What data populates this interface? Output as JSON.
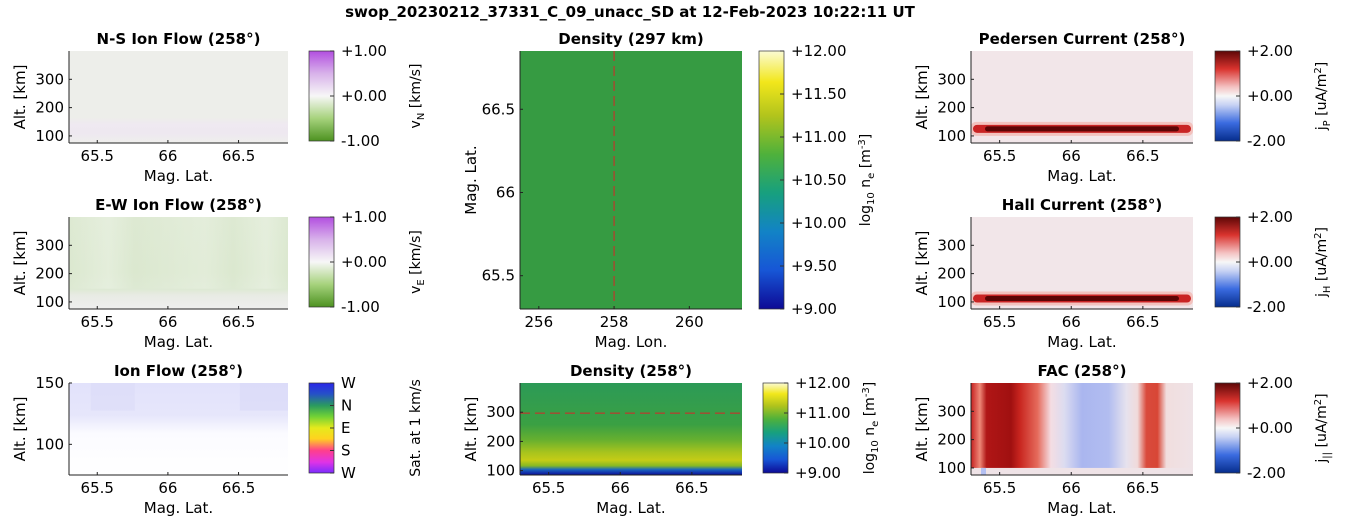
{
  "figure": {
    "title": "swop_20230212_37331_C_09_unacc_SD at 12-Feb-2023 10:22:11 UT"
  },
  "chart_data": [
    {
      "id": "ns",
      "type": "heatmap",
      "title": "N-S Ion Flow (258°)",
      "xlabel": "Mag. Lat.",
      "ylabel": "Alt. [km]",
      "xlim": [
        65.3,
        66.85
      ],
      "ylim": [
        75,
        400
      ],
      "xticks": [
        65.5,
        66,
        66.5
      ],
      "xticklabels": [
        "65.5",
        "66",
        "66.5"
      ],
      "yticks": [
        100,
        200,
        300
      ],
      "yticklabels": [
        "100",
        "200",
        "300"
      ],
      "colorbar": {
        "ticklabels": [
          "+1.00",
          "+0.00",
          "-1.00"
        ],
        "label": "v",
        "sub": "N",
        "unit": " [km/s]",
        "range": [
          -1,
          1
        ],
        "colormap": "purple-white-green"
      },
      "field": "near-zero everywhere; faint purple tint (~+0.05) at 110–140 km"
    },
    {
      "id": "ew",
      "type": "heatmap",
      "title": "E-W Ion Flow (258°)",
      "xlabel": "Mag. Lat.",
      "ylabel": "Alt. [km]",
      "xlim": [
        65.3,
        66.85
      ],
      "ylim": [
        75,
        400
      ],
      "xticks": [
        65.5,
        66,
        66.5
      ],
      "xticklabels": [
        "65.5",
        "66",
        "66.5"
      ],
      "yticks": [
        100,
        200,
        300
      ],
      "yticklabels": [
        "100",
        "200",
        "300"
      ],
      "colorbar": {
        "ticklabels": [
          "+1.00",
          "+0.00",
          "-1.00"
        ],
        "label": "v",
        "sub": "E",
        "unit": " [km/s]",
        "range": [
          -1,
          1
        ],
        "colormap": "purple-white-green"
      },
      "field": "weak negative (~-0.15) above 130 km; near zero below 120 km"
    },
    {
      "id": "ion",
      "type": "heatmap",
      "title": "Ion Flow (258°)",
      "xlabel": "Mag. Lat.",
      "ylabel": "Alt. [km]",
      "xlim": [
        65.3,
        66.85
      ],
      "ylim": [
        75,
        150
      ],
      "xticks": [
        65.5,
        66,
        66.5
      ],
      "xticklabels": [
        "65.5",
        "66",
        "66.5"
      ],
      "yticks": [
        100,
        150
      ],
      "yticklabels": [
        "100",
        "150"
      ],
      "colorbar": {
        "ticklabels": [
          "W",
          "N",
          "E",
          "S",
          "W"
        ],
        "label": "Sat. at 1 km/s",
        "colormap": "direction wheel"
      },
      "field": "faint lavender (westward, low speed) above ~125 km; white below"
    },
    {
      "id": "dens_top",
      "type": "heatmap",
      "title": "Density (297 km)",
      "xlabel": "Mag. Lon.",
      "ylabel": "Mag. Lat.",
      "xlim": [
        255.5,
        261.4
      ],
      "ylim": [
        65.3,
        66.85
      ],
      "xticks": [
        256,
        258,
        260
      ],
      "xticklabels": [
        "256",
        "258",
        "260"
      ],
      "yticks": [
        65.5,
        66,
        66.5
      ],
      "yticklabels": [
        "65.5",
        "66",
        "66.5"
      ],
      "marker_line": {
        "axis": "x",
        "value": 258,
        "color": "#d62728"
      },
      "colorbar": {
        "ticklabels": [
          "+12.00",
          "+11.50",
          "+11.00",
          "+10.50",
          "+10.00",
          "+9.50",
          "+9.00"
        ],
        "label": "log",
        "sub": "10",
        "mid": " n",
        "sub2": "e",
        "unit": " [m",
        "sup": "-3",
        "tail": "]",
        "range": [
          9,
          12
        ],
        "colormap": "parula"
      },
      "field": "uniform ~10.6 log10 m^-3"
    },
    {
      "id": "dens_bot",
      "type": "heatmap",
      "title": "Density (258°)",
      "xlabel": "Mag. Lat.",
      "ylabel": "Alt. [km]",
      "xlim": [
        65.3,
        66.85
      ],
      "ylim": [
        85,
        400
      ],
      "xticks": [
        65.5,
        66,
        66.5
      ],
      "xticklabels": [
        "65.5",
        "66",
        "66.5"
      ],
      "yticks": [
        100,
        200,
        300
      ],
      "yticklabels": [
        "100",
        "200",
        "300"
      ],
      "marker_line": {
        "axis": "y",
        "value": 297,
        "color": "#d62728"
      },
      "colorbar": {
        "ticklabels": [
          "+12.00",
          "+11.00",
          "+10.00",
          "+9.00"
        ],
        "label": "log",
        "sub": "10",
        "mid": " n",
        "sub2": "e",
        "unit": " [m",
        "sup": "-3",
        "tail": "]",
        "range": [
          9,
          12
        ],
        "colormap": "parula"
      },
      "field": "peak ~11.0 at 120–150 km, ~10.6 above 250 km, drops to ~9 below 100 km"
    },
    {
      "id": "ped",
      "type": "heatmap",
      "title": "Pedersen Current (258°)",
      "xlabel": "Mag. Lat.",
      "ylabel": "Alt. [km]",
      "xlim": [
        65.3,
        66.85
      ],
      "ylim": [
        75,
        400
      ],
      "xticks": [
        65.5,
        66,
        66.5
      ],
      "xticklabels": [
        "65.5",
        "66",
        "66.5"
      ],
      "yticks": [
        100,
        200,
        300
      ],
      "yticklabels": [
        "100",
        "200",
        "300"
      ],
      "colorbar": {
        "ticklabels": [
          "+2.00",
          "+0.00",
          "-2.00"
        ],
        "label": "j",
        "sub": "P",
        "unit": " [uA/m",
        "sup": "2",
        "tail": "]",
        "range": [
          -2,
          2
        ],
        "colormap": "blue-white-red"
      },
      "field": "strong positive (~+2) layer at ~125 km; weak positive (~+0.1) elsewhere"
    },
    {
      "id": "hall",
      "type": "heatmap",
      "title": "Hall Current (258°)",
      "xlabel": "Mag. Lat.",
      "ylabel": "Alt. [km]",
      "xlim": [
        65.3,
        66.85
      ],
      "ylim": [
        75,
        400
      ],
      "xticks": [
        65.5,
        66,
        66.5
      ],
      "xticklabels": [
        "65.5",
        "66",
        "66.5"
      ],
      "yticks": [
        100,
        200,
        300
      ],
      "yticklabels": [
        "100",
        "200",
        "300"
      ],
      "colorbar": {
        "ticklabels": [
          "+2.00",
          "+0.00",
          "-2.00"
        ],
        "label": "j",
        "sub": "H",
        "unit": " [uA/m",
        "sup": "2",
        "tail": "]",
        "range": [
          -2,
          2
        ],
        "colormap": "blue-white-red"
      },
      "field": "strong positive (~+2) layer at ~110 km; weak positive (~+0.1) elsewhere"
    },
    {
      "id": "fac",
      "type": "heatmap",
      "title": "FAC (258°)",
      "xlabel": "Mag. Lat.",
      "ylabel": "Alt. [km]",
      "xlim": [
        65.3,
        66.85
      ],
      "ylim": [
        75,
        400
      ],
      "xticks": [
        65.5,
        66,
        66.5
      ],
      "xticklabels": [
        "65.5",
        "66",
        "66.5"
      ],
      "yticks": [
        100,
        200,
        300
      ],
      "yticklabels": [
        "100",
        "200",
        "300"
      ],
      "colorbar": {
        "ticklabels": [
          "+2.00",
          "+0.00",
          "-2.00"
        ],
        "label": "j",
        "sub": "||",
        "unit": " [uA/m",
        "sup": "2",
        "tail": "]",
        "range": [
          -2,
          2
        ],
        "colormap": "blue-white-red"
      },
      "field": "latitude-banded: strong positive 65.3–65.8, weak negative 65.9–66.5, positive near 66.6"
    }
  ]
}
